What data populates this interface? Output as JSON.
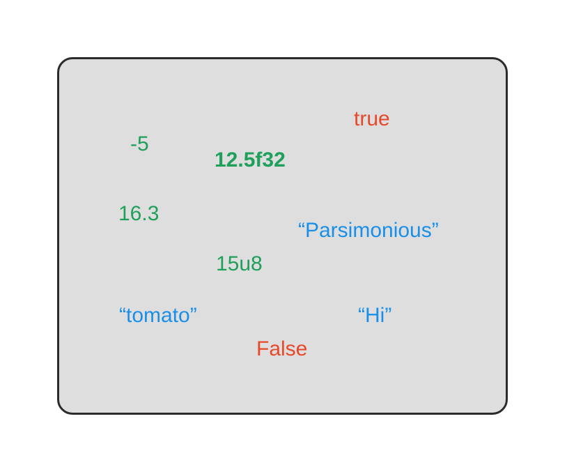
{
  "colors": {
    "number": "#1fa05a",
    "string": "#1a8fe8",
    "boolean": "#e8482a",
    "panel_bg": "#dedede",
    "panel_border": "#2b2b2b"
  },
  "values": {
    "v_true": "true",
    "v_neg5": "-5",
    "v_float32": "12.5f32",
    "v_16_3": "16.3",
    "v_parsimonious": "“Parsimonious”",
    "v_u8": "15u8",
    "v_tomato": "“tomato”",
    "v_hi": "“Hi”",
    "v_false": "False"
  }
}
